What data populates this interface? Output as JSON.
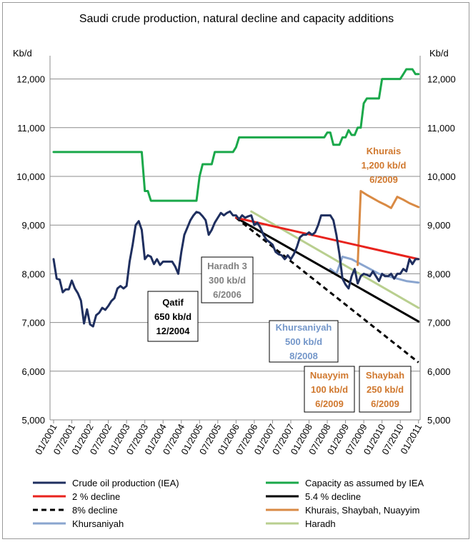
{
  "chart_data": {
    "type": "line",
    "title": "Saudi crude production, natural decline and capacity additions",
    "ylabel_left": "Kb/d",
    "ylabel_right": "Kb/d",
    "ylim": [
      5000,
      12500
    ],
    "yticks": [
      5000,
      6000,
      7000,
      8000,
      9000,
      10000,
      11000,
      12000
    ],
    "ytick_labels": [
      "5,000",
      "6,000",
      "7,000",
      "8,000",
      "9,000",
      "10,000",
      "11,000",
      "12,000"
    ],
    "xlim": [
      "2001-01",
      "2011-02"
    ],
    "xtick_labels": [
      "01/2001",
      "07/2001",
      "01/2002",
      "07/2002",
      "01/2003",
      "07/2003",
      "01/2004",
      "07/2004",
      "01/2005",
      "07/2005",
      "01/2006",
      "07/2006",
      "01/2007",
      "07/2007",
      "01/2008",
      "07/2008",
      "01/2009",
      "07/2009",
      "01/2010",
      "07/2010",
      "01/2011"
    ],
    "grid": "horizontal",
    "series": [
      {
        "name": "Crude oil production (IEA)",
        "color": "#1f2f5f",
        "dash": "solid",
        "points": [
          [
            "2001-01",
            8300
          ],
          [
            "2001-02",
            7900
          ],
          [
            "2001-03",
            7880
          ],
          [
            "2001-04",
            7620
          ],
          [
            "2001-05",
            7680
          ],
          [
            "2001-06",
            7680
          ],
          [
            "2001-07",
            7860
          ],
          [
            "2001-08",
            7700
          ],
          [
            "2001-09",
            7600
          ],
          [
            "2001-10",
            7450
          ],
          [
            "2001-11",
            6980
          ],
          [
            "2001-12",
            7270
          ],
          [
            "2002-01",
            6960
          ],
          [
            "2002-02",
            6920
          ],
          [
            "2002-03",
            7150
          ],
          [
            "2002-04",
            7200
          ],
          [
            "2002-05",
            7300
          ],
          [
            "2002-06",
            7260
          ],
          [
            "2002-07",
            7340
          ],
          [
            "2002-08",
            7440
          ],
          [
            "2002-09",
            7500
          ],
          [
            "2002-10",
            7700
          ],
          [
            "2002-11",
            7750
          ],
          [
            "2002-12",
            7700
          ],
          [
            "2003-01",
            7750
          ],
          [
            "2003-02",
            8250
          ],
          [
            "2003-03",
            8600
          ],
          [
            "2003-04",
            9000
          ],
          [
            "2003-05",
            9080
          ],
          [
            "2003-06",
            8900
          ],
          [
            "2003-07",
            8300
          ],
          [
            "2003-08",
            8380
          ],
          [
            "2003-09",
            8350
          ],
          [
            "2003-10",
            8200
          ],
          [
            "2003-11",
            8300
          ],
          [
            "2003-12",
            8180
          ],
          [
            "2004-01",
            8250
          ],
          [
            "2004-02",
            8250
          ],
          [
            "2004-03",
            8250
          ],
          [
            "2004-04",
            8250
          ],
          [
            "2004-05",
            8150
          ],
          [
            "2004-06",
            8000
          ],
          [
            "2004-07",
            8450
          ],
          [
            "2004-08",
            8800
          ],
          [
            "2004-09",
            8950
          ],
          [
            "2004-10",
            9100
          ],
          [
            "2004-11",
            9200
          ],
          [
            "2004-12",
            9270
          ],
          [
            "2005-01",
            9250
          ],
          [
            "2005-02",
            9180
          ],
          [
            "2005-03",
            9100
          ],
          [
            "2005-04",
            8800
          ],
          [
            "2005-05",
            8900
          ],
          [
            "2005-06",
            9050
          ],
          [
            "2005-07",
            9150
          ],
          [
            "2005-08",
            9250
          ],
          [
            "2005-09",
            9200
          ],
          [
            "2005-10",
            9250
          ],
          [
            "2005-11",
            9280
          ],
          [
            "2005-12",
            9200
          ],
          [
            "2006-01",
            9200
          ],
          [
            "2006-02",
            9120
          ],
          [
            "2006-03",
            9200
          ],
          [
            "2006-04",
            9150
          ],
          [
            "2006-05",
            9180
          ],
          [
            "2006-06",
            9200
          ],
          [
            "2006-07",
            9000
          ],
          [
            "2006-08",
            9050
          ],
          [
            "2006-09",
            8950
          ],
          [
            "2006-10",
            8800
          ],
          [
            "2006-11",
            8700
          ],
          [
            "2006-12",
            8650
          ],
          [
            "2007-01",
            8600
          ],
          [
            "2007-02",
            8450
          ],
          [
            "2007-03",
            8400
          ],
          [
            "2007-04",
            8380
          ],
          [
            "2007-05",
            8300
          ],
          [
            "2007-06",
            8380
          ],
          [
            "2007-07",
            8300
          ],
          [
            "2007-08",
            8400
          ],
          [
            "2007-09",
            8550
          ],
          [
            "2007-10",
            8750
          ],
          [
            "2007-11",
            8800
          ],
          [
            "2007-12",
            8800
          ],
          [
            "2008-01",
            8850
          ],
          [
            "2008-02",
            8800
          ],
          [
            "2008-03",
            8850
          ],
          [
            "2008-04",
            9000
          ],
          [
            "2008-05",
            9200
          ],
          [
            "2008-06",
            9200
          ],
          [
            "2008-07",
            9200
          ],
          [
            "2008-08",
            9200
          ],
          [
            "2008-09",
            9100
          ],
          [
            "2008-10",
            8800
          ],
          [
            "2008-11",
            8400
          ],
          [
            "2008-12",
            7900
          ],
          [
            "2009-01",
            7780
          ],
          [
            "2009-02",
            7700
          ],
          [
            "2009-03",
            7950
          ],
          [
            "2009-04",
            8100
          ],
          [
            "2009-05",
            7800
          ],
          [
            "2009-06",
            7950
          ],
          [
            "2009-07",
            8000
          ],
          [
            "2009-08",
            7980
          ],
          [
            "2009-09",
            7950
          ],
          [
            "2009-10",
            8050
          ],
          [
            "2009-11",
            7950
          ],
          [
            "2009-12",
            7850
          ],
          [
            "2010-01",
            8000
          ],
          [
            "2010-02",
            7950
          ],
          [
            "2010-03",
            7950
          ],
          [
            "2010-04",
            8000
          ],
          [
            "2010-05",
            7900
          ],
          [
            "2010-06",
            8000
          ],
          [
            "2010-07",
            8000
          ],
          [
            "2010-08",
            8100
          ],
          [
            "2010-09",
            8050
          ],
          [
            "2010-10",
            8300
          ],
          [
            "2010-11",
            8200
          ],
          [
            "2010-12",
            8300
          ],
          [
            "2011-01",
            8300
          ]
        ]
      },
      {
        "name": "Capacity as assumed by IEA",
        "color": "#1aa84a",
        "dash": "solid",
        "points": [
          [
            "2001-01",
            10500
          ],
          [
            "2003-06",
            10500
          ],
          [
            "2003-07",
            9700
          ],
          [
            "2003-08",
            9700
          ],
          [
            "2003-09",
            9500
          ],
          [
            "2004-12",
            9500
          ],
          [
            "2005-01",
            10000
          ],
          [
            "2005-02",
            10250
          ],
          [
            "2005-05",
            10250
          ],
          [
            "2005-06",
            10500
          ],
          [
            "2005-12",
            10500
          ],
          [
            "2006-01",
            10600
          ],
          [
            "2006-02",
            10800
          ],
          [
            "2008-06",
            10800
          ],
          [
            "2008-07",
            10900
          ],
          [
            "2008-08",
            10900
          ],
          [
            "2008-09",
            10650
          ],
          [
            "2008-11",
            10650
          ],
          [
            "2008-12",
            10800
          ],
          [
            "2009-01",
            10800
          ],
          [
            "2009-02",
            10950
          ],
          [
            "2009-03",
            10850
          ],
          [
            "2009-04",
            10850
          ],
          [
            "2009-05",
            11000
          ],
          [
            "2009-06",
            11000
          ],
          [
            "2009-07",
            11500
          ],
          [
            "2009-08",
            11600
          ],
          [
            "2009-12",
            11600
          ],
          [
            "2010-01",
            12000
          ],
          [
            "2010-07",
            12000
          ],
          [
            "2010-08",
            12100
          ],
          [
            "2010-09",
            12200
          ],
          [
            "2010-11",
            12200
          ],
          [
            "2010-12",
            12100
          ],
          [
            "2011-01",
            12100
          ]
        ]
      },
      {
        "name": "2 % decline",
        "color": "#e8231d",
        "dash": "solid",
        "points": [
          [
            "2006-01",
            9150
          ],
          [
            "2011-01",
            8300
          ]
        ]
      },
      {
        "name": "5.4 % decline",
        "color": "#000000",
        "dash": "solid",
        "points": [
          [
            "2006-01",
            9150
          ],
          [
            "2011-01",
            7020
          ]
        ]
      },
      {
        "name": "8% decline",
        "color": "#000000",
        "dash": "dashed",
        "points": [
          [
            "2006-01",
            9150
          ],
          [
            "2011-01",
            6180
          ]
        ]
      },
      {
        "name": "Khurais, Shaybah, Nuayyim",
        "color": "#d98a44",
        "dash": "solid",
        "points": [
          [
            "2009-05",
            8180
          ],
          [
            "2009-06",
            9700
          ],
          [
            "2009-08",
            9620
          ],
          [
            "2009-10",
            9550
          ],
          [
            "2009-12",
            9480
          ],
          [
            "2010-02",
            9420
          ],
          [
            "2010-04",
            9350
          ],
          [
            "2010-06",
            9580
          ],
          [
            "2010-08",
            9520
          ],
          [
            "2010-10",
            9450
          ],
          [
            "2011-01",
            9370
          ]
        ]
      },
      {
        "name": "Khursaniyah",
        "color": "#8aa5cf",
        "dash": "solid",
        "points": [
          [
            "2008-08",
            8100
          ],
          [
            "2008-10",
            8000
          ],
          [
            "2008-12",
            8350
          ],
          [
            "2009-03",
            8300
          ],
          [
            "2009-06",
            8200
          ],
          [
            "2009-09",
            8100
          ],
          [
            "2009-12",
            8000
          ],
          [
            "2010-03",
            7950
          ],
          [
            "2010-06",
            7900
          ],
          [
            "2010-09",
            7850
          ],
          [
            "2011-01",
            7820
          ]
        ]
      },
      {
        "name": "Haradh",
        "color": "#b9cf8f",
        "dash": "solid",
        "points": [
          [
            "2006-06",
            9280
          ],
          [
            "2011-01",
            7300
          ]
        ]
      }
    ],
    "annotations": [
      {
        "lines": [
          "Qatif",
          "650 kb/d",
          "12/2004"
        ],
        "color": "#000000",
        "box": true
      },
      {
        "lines": [
          "Haradh 3",
          "300 kb/d",
          "6/2006"
        ],
        "color": "#808080",
        "box": true
      },
      {
        "lines": [
          "Khursaniyah",
          "500 kb/d",
          "8/2008"
        ],
        "color": "#7396c9",
        "box": true
      },
      {
        "lines": [
          "Khurais",
          "1,200 kb/d",
          "6/2009"
        ],
        "color": "#d0782e",
        "box": false
      },
      {
        "lines": [
          "Nuayyim",
          "100 kb/d",
          "6/2009"
        ],
        "color": "#d0782e",
        "box": true
      },
      {
        "lines": [
          "Shaybah",
          "250 kb/d",
          "6/2009"
        ],
        "color": "#d0782e",
        "box": true
      }
    ],
    "legend": [
      {
        "label": "Crude oil production (IEA)",
        "color": "#1f2f5f",
        "dash": "solid"
      },
      {
        "label": "Capacity as assumed by IEA",
        "color": "#1aa84a",
        "dash": "solid"
      },
      {
        "label": "2 % decline",
        "color": "#e8231d",
        "dash": "solid"
      },
      {
        "label": "5.4 % decline",
        "color": "#000000",
        "dash": "solid"
      },
      {
        "label": "8% decline",
        "color": "#000000",
        "dash": "dashed"
      },
      {
        "label": "Khurais, Shaybah, Nuayyim",
        "color": "#d98a44",
        "dash": "solid"
      },
      {
        "label": "Khursaniyah",
        "color": "#8aa5cf",
        "dash": "solid"
      },
      {
        "label": "Haradh",
        "color": "#b9cf8f",
        "dash": "solid"
      }
    ],
    "legend_position": "bottom"
  }
}
